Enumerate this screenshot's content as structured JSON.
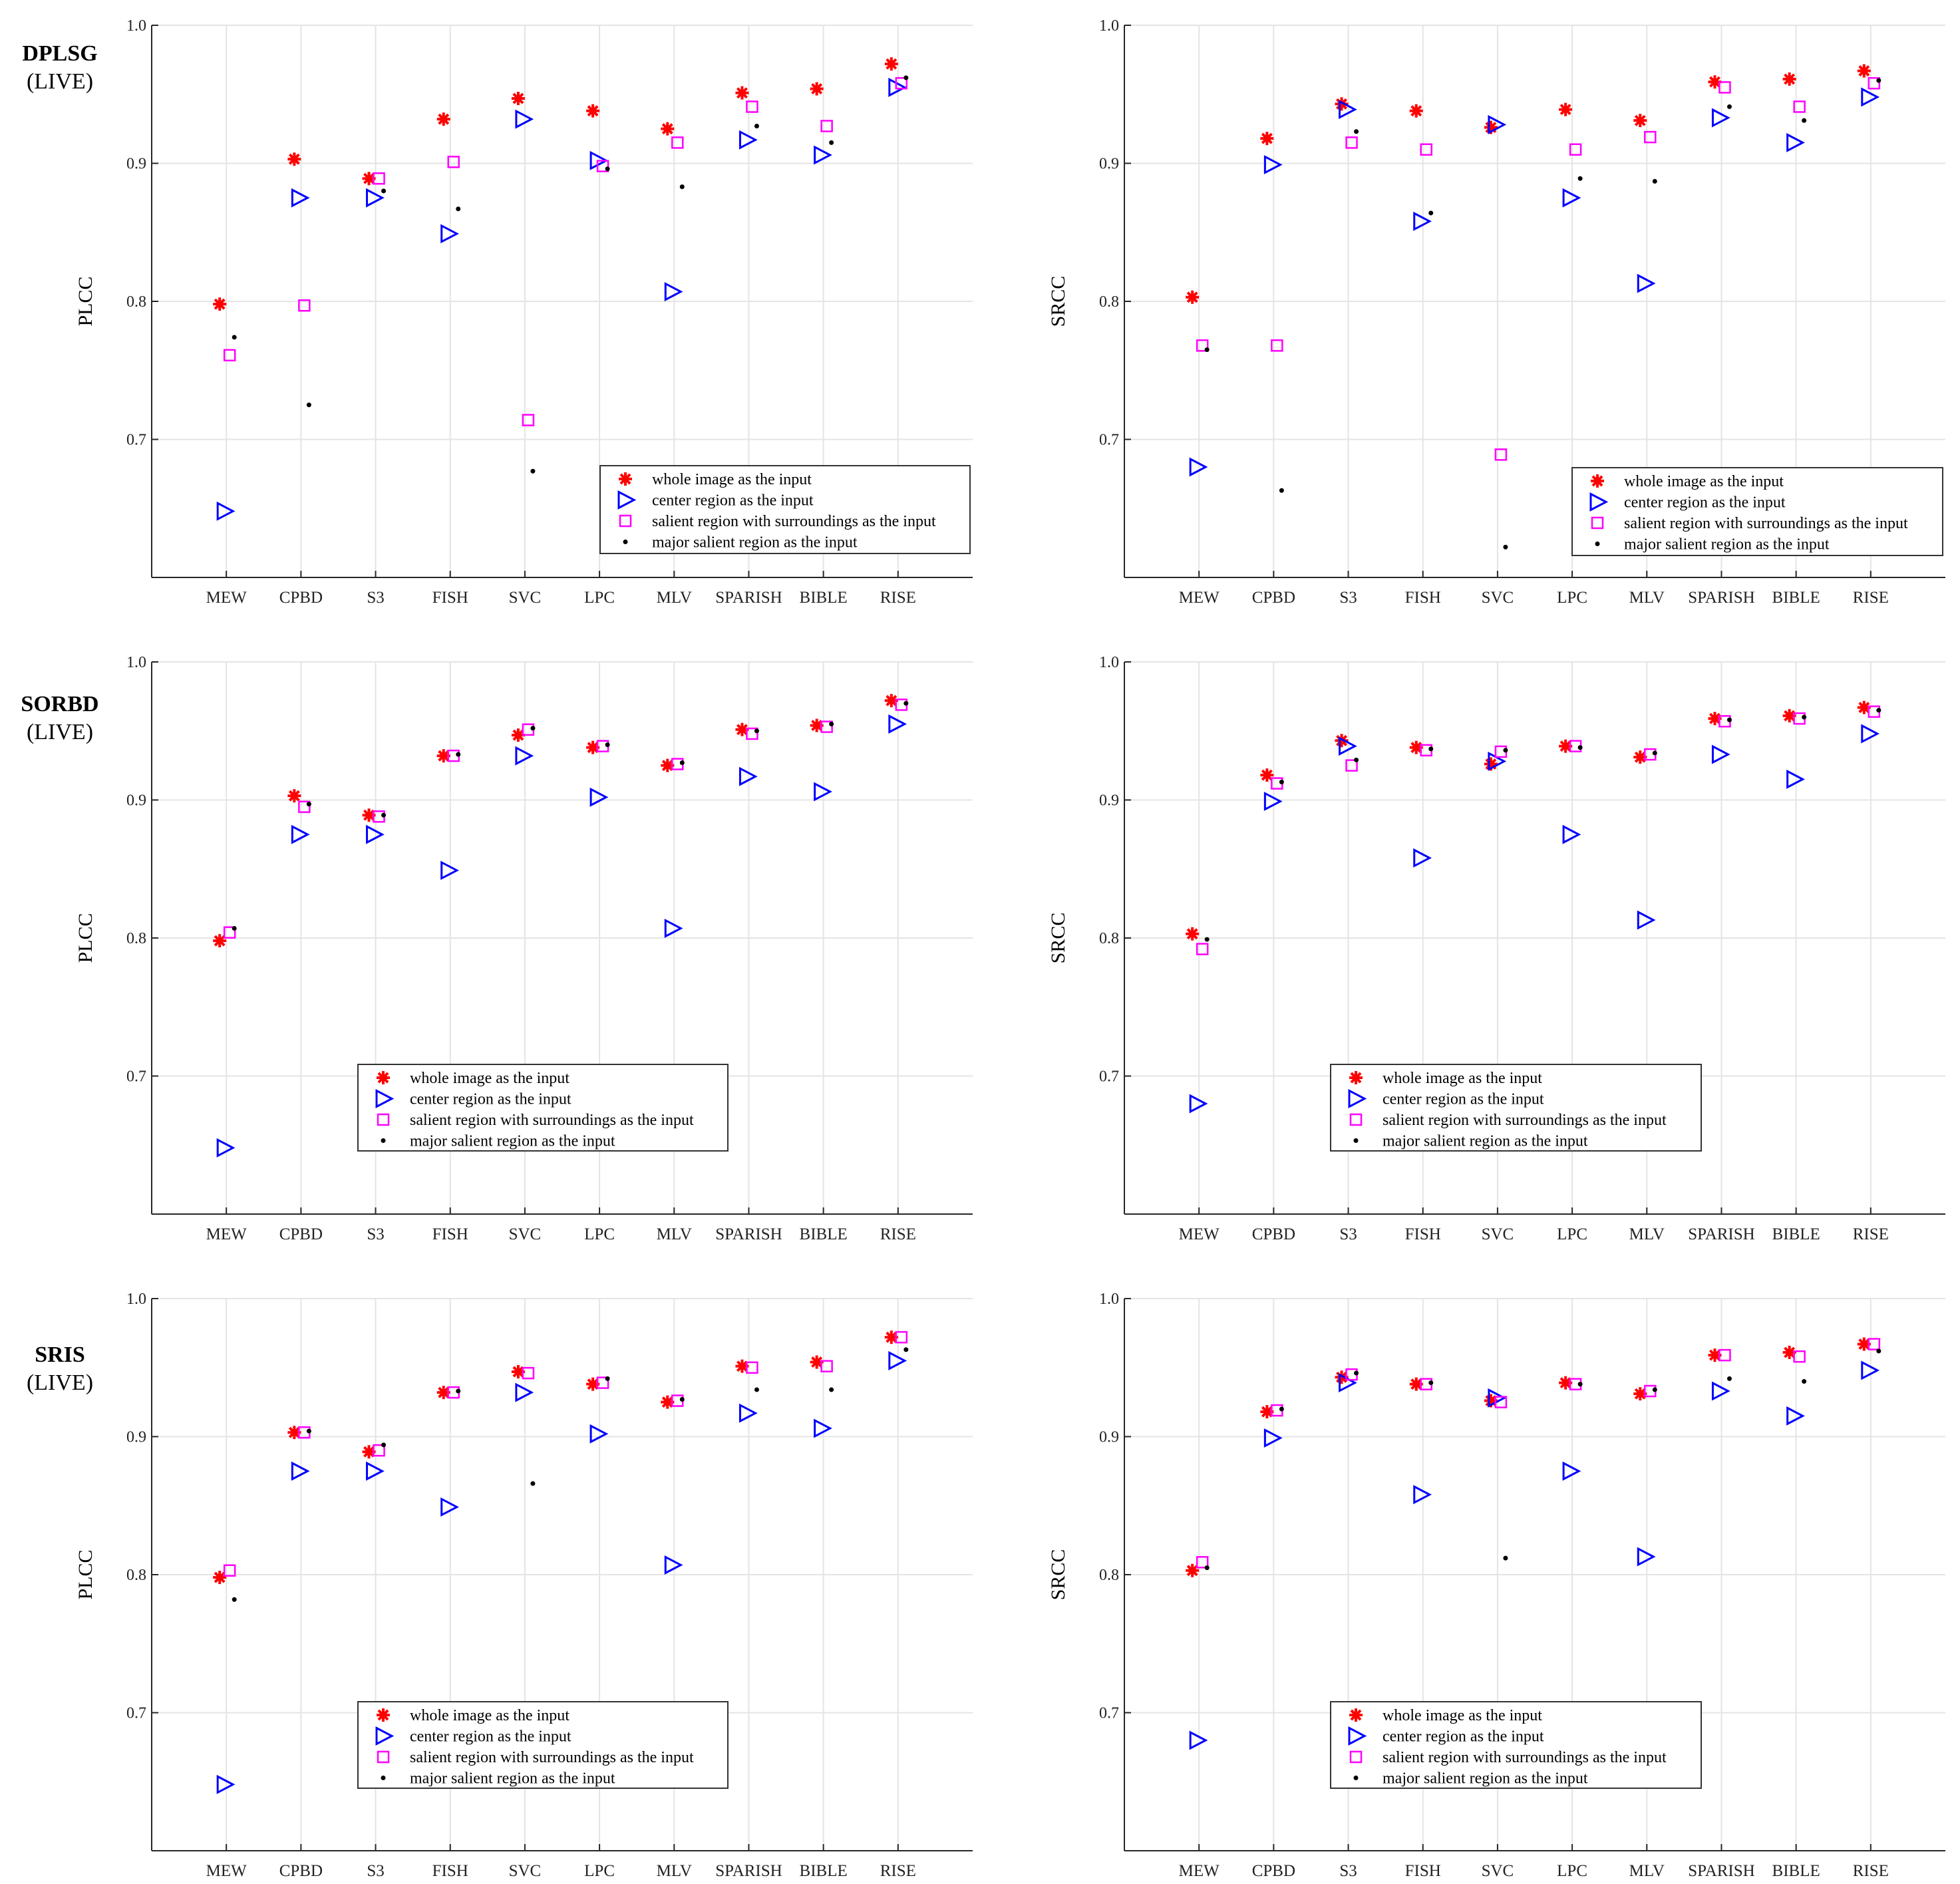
{
  "figure": {
    "legend_entries": [
      "whole image as the input",
      "center region as the input",
      "salient region with surroundings as the input",
      "major salient region as the input"
    ],
    "colors": {
      "whole": "#ff0000",
      "center": "#0000ff",
      "salient": "#ff00ff",
      "major": "#000000",
      "grid": "#e4e4e4",
      "axis": "#262626"
    },
    "row_labels": [
      {
        "name": "DPLSG",
        "sub": "(LIVE)"
      },
      {
        "name": "SORBD",
        "sub": "(LIVE)"
      },
      {
        "name": "SRIS",
        "sub": "(LIVE)"
      }
    ]
  },
  "chart_data": [
    {
      "id": "dplsg-plcc",
      "type": "scatter",
      "title": "",
      "ylabel": "PLCC",
      "xlabel": "",
      "ylim": [
        0.6,
        1.0
      ],
      "yticks": [
        "0.7",
        "0.8",
        "0.9",
        "1.0"
      ],
      "grid": true,
      "legend_position": "bottom-right",
      "categories": [
        "MEW",
        "CPBD",
        "S3",
        "FISH",
        "SVC",
        "LPC",
        "MLV",
        "SPARISH",
        "BIBLE",
        "RISE"
      ],
      "series": [
        {
          "name": "whole image as the input",
          "values": [
            0.798,
            0.903,
            0.889,
            0.932,
            0.947,
            0.938,
            0.925,
            0.951,
            0.954,
            0.972
          ]
        },
        {
          "name": "center region as the input",
          "values": [
            0.648,
            0.875,
            0.875,
            0.849,
            0.932,
            0.902,
            0.807,
            0.917,
            0.906,
            0.955
          ]
        },
        {
          "name": "salient region with surroundings as the input",
          "values": [
            0.761,
            0.797,
            0.889,
            0.901,
            0.714,
            0.898,
            0.915,
            0.941,
            0.927,
            0.958
          ]
        },
        {
          "name": "major salient region as the input",
          "values": [
            0.774,
            0.725,
            0.88,
            0.867,
            0.677,
            0.896,
            0.883,
            0.927,
            0.915,
            0.962
          ]
        }
      ]
    },
    {
      "id": "dplsg-srcc",
      "type": "scatter",
      "title": "",
      "ylabel": "SRCC",
      "xlabel": "",
      "ylim": [
        0.6,
        1.0
      ],
      "yticks": [
        "0.7",
        "0.8",
        "0.9",
        "1.0"
      ],
      "grid": true,
      "legend_position": "bottom-right",
      "categories": [
        "MEW",
        "CPBD",
        "S3",
        "FISH",
        "SVC",
        "LPC",
        "MLV",
        "SPARISH",
        "BIBLE",
        "RISE"
      ],
      "series": [
        {
          "name": "whole image as the input",
          "values": [
            0.803,
            0.918,
            0.943,
            0.938,
            0.926,
            0.939,
            0.931,
            0.959,
            0.961,
            0.967
          ]
        },
        {
          "name": "center region as the input",
          "values": [
            0.68,
            0.899,
            0.939,
            0.858,
            0.928,
            0.875,
            0.813,
            0.933,
            0.915,
            0.948
          ]
        },
        {
          "name": "salient region with surroundings as the input",
          "values": [
            0.768,
            0.768,
            0.915,
            0.91,
            0.689,
            0.91,
            0.919,
            0.955,
            0.941,
            0.958
          ]
        },
        {
          "name": "major salient region as the input",
          "values": [
            0.765,
            0.663,
            0.923,
            0.864,
            0.622,
            0.889,
            0.887,
            0.941,
            0.931,
            0.96
          ]
        }
      ]
    },
    {
      "id": "sorbd-plcc",
      "type": "scatter",
      "title": "",
      "ylabel": "PLCC",
      "xlabel": "",
      "ylim": [
        0.6,
        1.0
      ],
      "yticks": [
        "0.7",
        "0.8",
        "0.9",
        "1.0"
      ],
      "grid": true,
      "legend_position": "bottom-center",
      "categories": [
        "MEW",
        "CPBD",
        "S3",
        "FISH",
        "SVC",
        "LPC",
        "MLV",
        "SPARISH",
        "BIBLE",
        "RISE"
      ],
      "series": [
        {
          "name": "whole image as the input",
          "values": [
            0.798,
            0.903,
            0.889,
            0.932,
            0.947,
            0.938,
            0.925,
            0.951,
            0.954,
            0.972
          ]
        },
        {
          "name": "center region as the input",
          "values": [
            0.648,
            0.875,
            0.875,
            0.849,
            0.932,
            0.902,
            0.807,
            0.917,
            0.906,
            0.955
          ]
        },
        {
          "name": "salient region with surroundings as the input",
          "values": [
            0.804,
            0.895,
            0.888,
            0.932,
            0.951,
            0.939,
            0.926,
            0.948,
            0.953,
            0.969
          ]
        },
        {
          "name": "major salient region as the input",
          "values": [
            0.807,
            0.897,
            0.889,
            0.933,
            0.952,
            0.94,
            0.927,
            0.95,
            0.955,
            0.97
          ]
        }
      ]
    },
    {
      "id": "sorbd-srcc",
      "type": "scatter",
      "title": "",
      "ylabel": "SRCC",
      "xlabel": "",
      "ylim": [
        0.6,
        1.0
      ],
      "yticks": [
        "0.7",
        "0.8",
        "0.9",
        "1.0"
      ],
      "grid": true,
      "legend_position": "bottom-center",
      "categories": [
        "MEW",
        "CPBD",
        "S3",
        "FISH",
        "SVC",
        "LPC",
        "MLV",
        "SPARISH",
        "BIBLE",
        "RISE"
      ],
      "series": [
        {
          "name": "whole image as the input",
          "values": [
            0.803,
            0.918,
            0.943,
            0.938,
            0.926,
            0.939,
            0.931,
            0.959,
            0.961,
            0.967
          ]
        },
        {
          "name": "center region as the input",
          "values": [
            0.68,
            0.899,
            0.939,
            0.858,
            0.928,
            0.875,
            0.813,
            0.933,
            0.915,
            0.948
          ]
        },
        {
          "name": "salient region with surroundings as the input",
          "values": [
            0.792,
            0.912,
            0.925,
            0.936,
            0.935,
            0.939,
            0.933,
            0.957,
            0.959,
            0.964
          ]
        },
        {
          "name": "major salient region as the input",
          "values": [
            0.799,
            0.913,
            0.929,
            0.937,
            0.936,
            0.938,
            0.934,
            0.958,
            0.96,
            0.965
          ]
        }
      ]
    },
    {
      "id": "sris-plcc",
      "type": "scatter",
      "title": "",
      "ylabel": "PLCC",
      "xlabel": "",
      "ylim": [
        0.6,
        1.0
      ],
      "yticks": [
        "0.7",
        "0.8",
        "0.9",
        "1.0"
      ],
      "grid": true,
      "legend_position": "bottom-center",
      "categories": [
        "MEW",
        "CPBD",
        "S3",
        "FISH",
        "SVC",
        "LPC",
        "MLV",
        "SPARISH",
        "BIBLE",
        "RISE"
      ],
      "series": [
        {
          "name": "whole image as the input",
          "values": [
            0.798,
            0.903,
            0.889,
            0.932,
            0.947,
            0.938,
            0.925,
            0.951,
            0.954,
            0.972
          ]
        },
        {
          "name": "center region as the input",
          "values": [
            0.648,
            0.875,
            0.875,
            0.849,
            0.932,
            0.902,
            0.807,
            0.917,
            0.906,
            0.955
          ]
        },
        {
          "name": "salient region with surroundings as the input",
          "values": [
            0.803,
            0.903,
            0.89,
            0.932,
            0.946,
            0.939,
            0.926,
            0.95,
            0.951,
            0.972
          ]
        },
        {
          "name": "major salient region as the input",
          "values": [
            0.782,
            0.904,
            0.894,
            0.933,
            0.866,
            0.942,
            0.927,
            0.934,
            0.934,
            0.963
          ]
        }
      ]
    },
    {
      "id": "sris-srcc",
      "type": "scatter",
      "title": "",
      "ylabel": "SRCC",
      "xlabel": "",
      "ylim": [
        0.6,
        1.0
      ],
      "yticks": [
        "0.7",
        "0.8",
        "0.9",
        "1.0"
      ],
      "grid": true,
      "legend_position": "bottom-center",
      "categories": [
        "MEW",
        "CPBD",
        "S3",
        "FISH",
        "SVC",
        "LPC",
        "MLV",
        "SPARISH",
        "BIBLE",
        "RISE"
      ],
      "series": [
        {
          "name": "whole image as the input",
          "values": [
            0.803,
            0.918,
            0.943,
            0.938,
            0.926,
            0.939,
            0.931,
            0.959,
            0.961,
            0.967
          ]
        },
        {
          "name": "center region as the input",
          "values": [
            0.68,
            0.899,
            0.939,
            0.858,
            0.928,
            0.875,
            0.813,
            0.933,
            0.915,
            0.948
          ]
        },
        {
          "name": "salient region with surroundings as the input",
          "values": [
            0.809,
            0.919,
            0.945,
            0.938,
            0.925,
            0.938,
            0.933,
            0.959,
            0.958,
            0.967
          ]
        },
        {
          "name": "major salient region as the input",
          "values": [
            0.805,
            0.92,
            0.946,
            0.939,
            0.812,
            0.938,
            0.934,
            0.942,
            0.94,
            0.962
          ]
        }
      ]
    }
  ]
}
